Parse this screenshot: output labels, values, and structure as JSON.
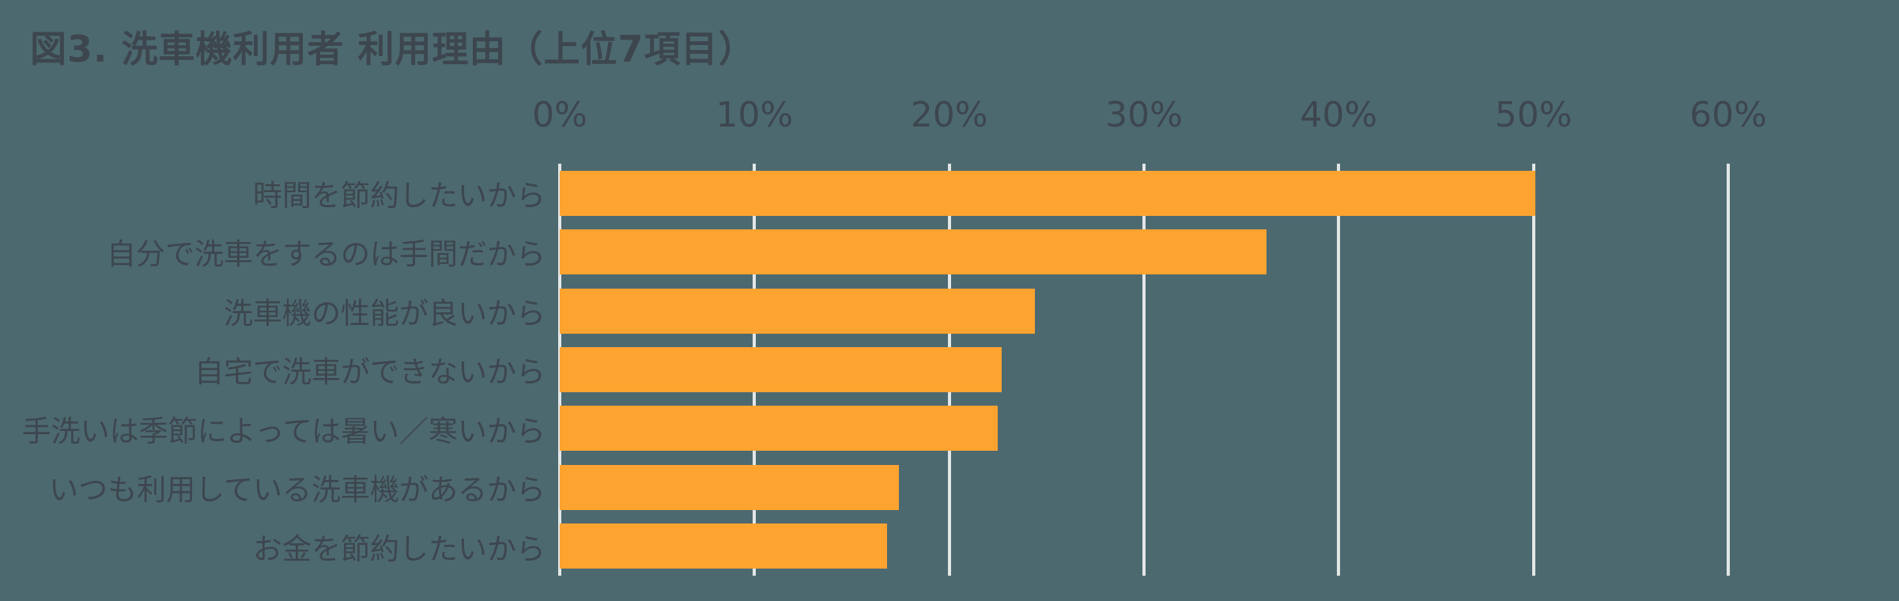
{
  "chart_data": {
    "type": "bar",
    "orientation": "horizontal",
    "title": "図3. 洗車機利用者 利用理由（上位7項目）",
    "categories": [
      "時間を節約したいから",
      "自分で洗車をするのは手間だから",
      "洗車機の性能が良いから",
      "自宅で洗車ができないから",
      "手洗いは季節によっては暑い／寒いから",
      "いつも利用している洗車機があるから",
      "お金を節約したいから"
    ],
    "values": [
      50.1,
      36.3,
      24.4,
      22.7,
      22.5,
      17.4,
      16.8
    ],
    "xlabel": "",
    "ylabel": "",
    "x_axis": {
      "min": 0,
      "max": 60,
      "unit": "%",
      "ticks": [
        {
          "label": "0%",
          "value": 0
        },
        {
          "label": "10%",
          "value": 10
        },
        {
          "label": "20%",
          "value": 20
        },
        {
          "label": "30%",
          "value": 30
        },
        {
          "label": "40%",
          "value": 40
        },
        {
          "label": "50%",
          "value": 50
        },
        {
          "label": "60%",
          "value": 60
        }
      ],
      "position": "top"
    },
    "grid": "vertical-lines-on",
    "legend": "none",
    "colors": {
      "background": "#4D6970",
      "bar": "#FDA330",
      "gridline": "#E2E6E7",
      "text": "#3D464E"
    }
  }
}
